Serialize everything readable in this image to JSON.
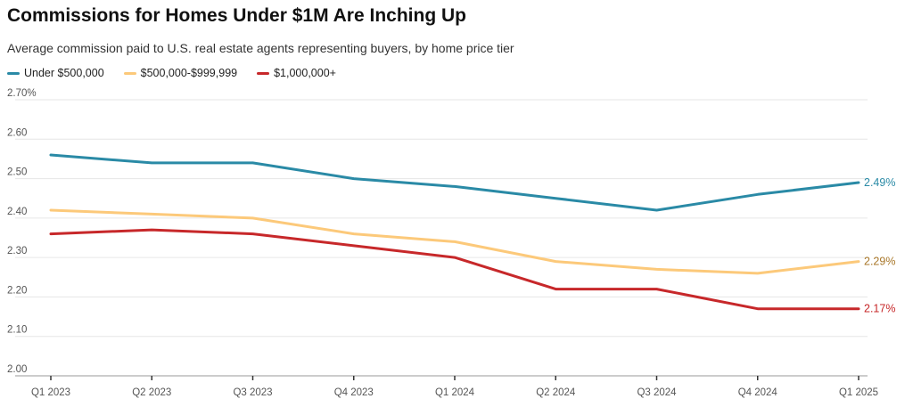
{
  "chart_data": {
    "type": "line",
    "title": "Commissions for Homes Under $1M Are Inching Up",
    "subtitle": "Average commission paid to U.S. real estate agents representing buyers, by home price tier",
    "categories": [
      "Q1 2023",
      "Q2 2023",
      "Q3 2023",
      "Q4 2023",
      "Q1 2024",
      "Q2 2024",
      "Q3 2024",
      "Q4 2024",
      "Q1 2025"
    ],
    "y_ticks": [
      "2.00",
      "2.10",
      "2.20",
      "2.30",
      "2.40",
      "2.50",
      "2.60",
      "2.70%"
    ],
    "ylim": [
      2.0,
      2.7
    ],
    "grid": true,
    "legend_position": "top-left",
    "series": [
      {
        "name": "Under $500,000",
        "color": "#2a8aa6",
        "values": [
          2.56,
          2.54,
          2.54,
          2.5,
          2.48,
          2.45,
          2.42,
          2.46,
          2.49
        ],
        "end_label": "2.49%",
        "end_label_color": "#2a8aa6"
      },
      {
        "name": "$500,000-$999,999",
        "color": "#fcc97a",
        "values": [
          2.42,
          2.41,
          2.4,
          2.36,
          2.34,
          2.29,
          2.27,
          2.26,
          2.29
        ],
        "end_label": "2.29%",
        "end_label_color": "#a8772a"
      },
      {
        "name": "$1,000,000+",
        "color": "#c7282a",
        "values": [
          2.36,
          2.37,
          2.36,
          2.33,
          2.3,
          2.22,
          2.22,
          2.17,
          2.17
        ],
        "end_label": "2.17%",
        "end_label_color": "#c7282a"
      }
    ]
  }
}
